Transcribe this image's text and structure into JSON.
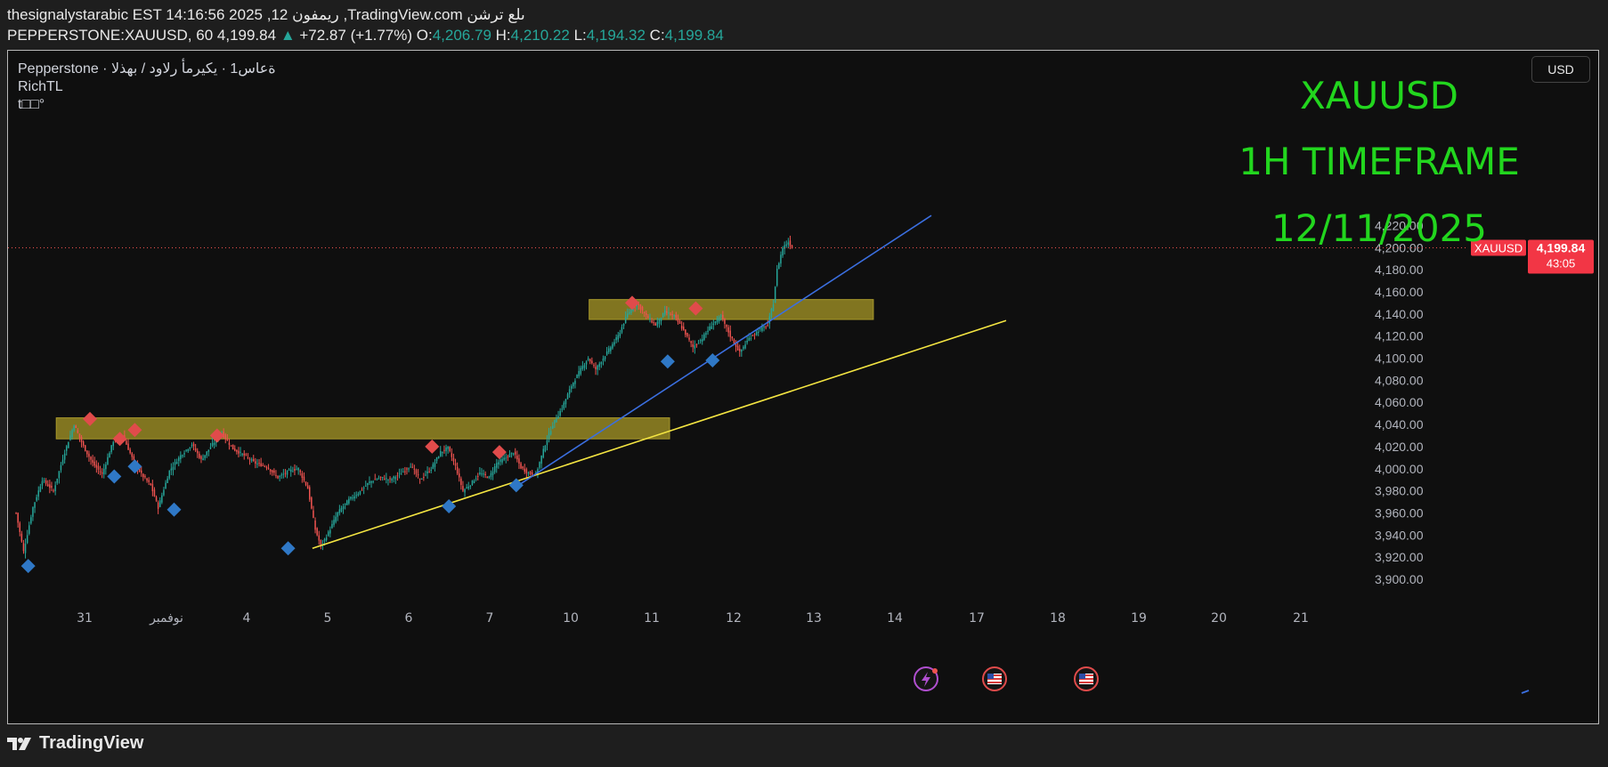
{
  "header": {
    "line1": "thesignalystarabic EST 14:16:56 2025 ,12 ريمفون ,TradingView.com ىلع ترشن",
    "symbol": "PEPPERSTONE:XAUUSD, 60",
    "last": "4,199.84",
    "change": "+72.87 (+1.77%)",
    "o_label": "O:",
    "open": "4,206.79",
    "h_label": "H:",
    "high": "4,210.22",
    "l_label": "L:",
    "low": "4,194.32",
    "c_label": "C:",
    "close": "4,199.84"
  },
  "legend": {
    "line1": "Pepperstone · ةعاس1 · يكيرمأ رلاود / بهذلا",
    "line2": "RichTL",
    "line3": "t□□°"
  },
  "currency_button": "USD",
  "price_tag": {
    "symbol": "XAUUSD",
    "price": "4,199.84",
    "countdown": "43:05"
  },
  "annotations": {
    "line1": "XAUUSD",
    "line2": "1H TIMEFRAME",
    "line3": "12/11/2025"
  },
  "footer": {
    "brand": "TradingView"
  },
  "colors": {
    "up": "#26a69a",
    "down": "#ef5350",
    "zone": "#8e8122",
    "trend_yellow": "#f4e542",
    "trend_blue": "#3b6fe0",
    "annotation": "#22d61e",
    "marker_high": "#e04b4b",
    "marker_low": "#2f78c6"
  },
  "chart_data": {
    "type": "candlestick",
    "symbol": "XAUUSD",
    "timeframe": "60",
    "y_ticks": [
      3900,
      3920,
      3940,
      3960,
      3980,
      4000,
      4020,
      4040,
      4060,
      4080,
      4100,
      4120,
      4140,
      4160,
      4180,
      4200,
      4220
    ],
    "y_tick_labels": [
      "3,900.00",
      "3,920.00",
      "3,940.00",
      "3,960.00",
      "3,980.00",
      "4,000.00",
      "4,020.00",
      "4,040.00",
      "4,060.00",
      "4,080.00",
      "4,100.00",
      "4,120.00",
      "4,140.00",
      "4,160.00",
      "4,180.00",
      "4,200.00",
      "4,220.00"
    ],
    "ylim": [
      3888,
      4234
    ],
    "x_ticks": [
      "31",
      "نوفمبر",
      "4",
      "5",
      "6",
      "7",
      "10",
      "11",
      "12",
      "13",
      "14",
      "17",
      "18",
      "19",
      "20",
      "21"
    ],
    "path": [
      [
        0,
        3960
      ],
      [
        4,
        3925
      ],
      [
        9,
        3965
      ],
      [
        14,
        3990
      ],
      [
        20,
        3980
      ],
      [
        26,
        4015
      ],
      [
        31,
        4040
      ],
      [
        36,
        4020
      ],
      [
        41,
        4005
      ],
      [
        46,
        3995
      ],
      [
        52,
        4025
      ],
      [
        57,
        4030
      ],
      [
        62,
        4010
      ],
      [
        67,
        3995
      ],
      [
        72,
        3985
      ],
      [
        76,
        3965
      ],
      [
        82,
        3998
      ],
      [
        88,
        4012
      ],
      [
        94,
        4022
      ],
      [
        99,
        4008
      ],
      [
        105,
        4022
      ],
      [
        110,
        4032
      ],
      [
        116,
        4018
      ],
      [
        122,
        4012
      ],
      [
        128,
        4005
      ],
      [
        134,
        4002
      ],
      [
        140,
        3992
      ],
      [
        146,
        3998
      ],
      [
        151,
        4000
      ],
      [
        156,
        3982
      ],
      [
        160,
        3945
      ],
      [
        163,
        3930
      ],
      [
        167,
        3942
      ],
      [
        172,
        3960
      ],
      [
        178,
        3972
      ],
      [
        183,
        3978
      ],
      [
        189,
        3988
      ],
      [
        195,
        3992
      ],
      [
        200,
        3990
      ],
      [
        206,
        3996
      ],
      [
        211,
        4003
      ],
      [
        216,
        3990
      ],
      [
        222,
        4000
      ],
      [
        227,
        4015
      ],
      [
        231,
        4019
      ],
      [
        235,
        4002
      ],
      [
        239,
        3980
      ],
      [
        243,
        3986
      ],
      [
        248,
        3996
      ],
      [
        253,
        3992
      ],
      [
        257,
        4005
      ],
      [
        262,
        4010
      ],
      [
        266,
        4015
      ],
      [
        270,
        4001
      ],
      [
        274,
        3996
      ],
      [
        278,
        3995
      ],
      [
        283,
        4022
      ],
      [
        287,
        4040
      ],
      [
        292,
        4055
      ],
      [
        297,
        4075
      ],
      [
        302,
        4090
      ],
      [
        306,
        4100
      ],
      [
        310,
        4090
      ],
      [
        316,
        4105
      ],
      [
        322,
        4120
      ],
      [
        327,
        4140
      ],
      [
        332,
        4150
      ],
      [
        337,
        4138
      ],
      [
        342,
        4130
      ],
      [
        347,
        4142
      ],
      [
        352,
        4138
      ],
      [
        357,
        4125
      ],
      [
        362,
        4110
      ],
      [
        367,
        4118
      ],
      [
        372,
        4130
      ],
      [
        377,
        4138
      ],
      [
        382,
        4120
      ],
      [
        387,
        4105
      ],
      [
        392,
        4118
      ],
      [
        397,
        4125
      ],
      [
        402,
        4130
      ],
      [
        405,
        4150
      ],
      [
        407,
        4180
      ],
      [
        410,
        4200
      ],
      [
        413,
        4205
      ],
      [
        415,
        4200
      ]
    ],
    "highs": [
      [
        40,
        4045
      ],
      [
        56,
        4027
      ],
      [
        64,
        4035
      ],
      [
        108,
        4030
      ],
      [
        223,
        4020
      ],
      [
        259,
        4015
      ],
      [
        330,
        4150
      ],
      [
        364,
        4145
      ]
    ],
    "lows": [
      [
        7,
        3912
      ],
      [
        53,
        3993
      ],
      [
        64,
        4002
      ],
      [
        85,
        3963
      ],
      [
        146,
        3928
      ],
      [
        232,
        3966
      ],
      [
        268,
        3985
      ],
      [
        349,
        4097
      ],
      [
        373,
        4098
      ]
    ],
    "zones": [
      {
        "x1": 22,
        "x2": 350,
        "y1": 4027,
        "y2": 4046
      },
      {
        "x1": 307,
        "x2": 459,
        "y1": 4135,
        "y2": 4153
      }
    ],
    "trendlines": [
      {
        "name": "yellow",
        "x1": 159,
        "y1": 3928,
        "x2": 530,
        "y2": 4134
      },
      {
        "name": "blue",
        "x1": 270,
        "y1": 3986,
        "x2": 490,
        "y2": 4229
      }
    ],
    "current_price": 4199.84
  }
}
